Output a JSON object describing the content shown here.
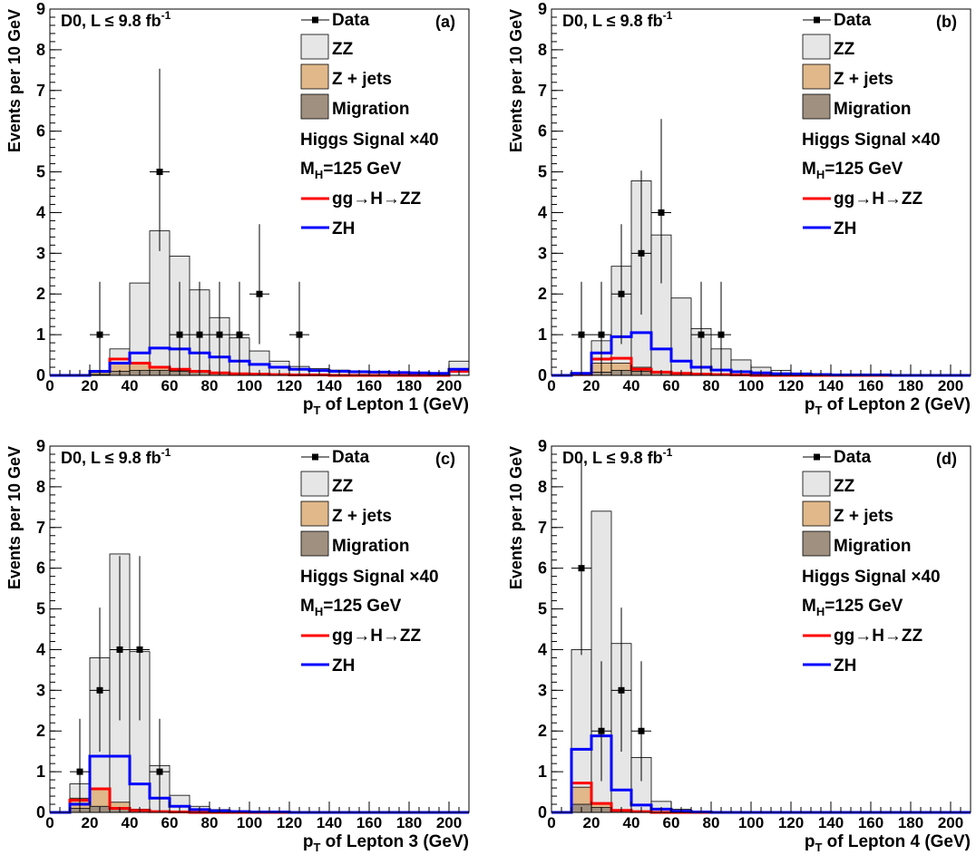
{
  "chart_data": [
    {
      "panel": "(a)",
      "type": "bar",
      "experiment": "D0, L ≤ 9.8 fb",
      "lumi_sup": "-1",
      "xlabel_sym": "p",
      "xlabel_sub": "T",
      "xlabel_rest": " of Lepton 1 (GeV)",
      "ylabel": "Events per 10 GeV",
      "xlim": [
        0,
        210
      ],
      "ylim": [
        0,
        9
      ],
      "xticks": [
        "0",
        "20",
        "40",
        "60",
        "80",
        "100",
        "120",
        "140",
        "160",
        "180",
        "200"
      ],
      "yticks": [
        "0",
        "1",
        "2",
        "3",
        "4",
        "5",
        "6",
        "7",
        "8",
        "9"
      ],
      "bin_edges": [
        0,
        10,
        20,
        30,
        40,
        50,
        60,
        70,
        80,
        90,
        100,
        110,
        120,
        130,
        140,
        150,
        160,
        170,
        180,
        190,
        200,
        210
      ],
      "series": [
        {
          "name": "ZZ",
          "kind": "stack-total",
          "color": "#e6e6e6",
          "values": [
            0,
            0,
            0.12,
            0.65,
            2.27,
            3.55,
            2.93,
            2.1,
            1.42,
            0.92,
            0.6,
            0.35,
            0.22,
            0.17,
            0.13,
            0.1,
            0.08,
            0.06,
            0.05,
            0.04,
            0.35
          ]
        },
        {
          "name": "Z + jets",
          "kind": "stack-mid",
          "color": "#e0b88a",
          "values": [
            0,
            0,
            0.07,
            0.28,
            0.3,
            0.2,
            0.12,
            0.08,
            0.05,
            0.03,
            0.02,
            0.01,
            0.01,
            0,
            0,
            0,
            0,
            0,
            0,
            0,
            0
          ]
        },
        {
          "name": "Migration",
          "kind": "stack-bottom",
          "color": "#a09080",
          "values": [
            0,
            0,
            0.02,
            0.1,
            0.12,
            0.12,
            0.1,
            0.08,
            0.06,
            0.05,
            0.04,
            0.03,
            0.02,
            0.01,
            0.01,
            0,
            0,
            0,
            0,
            0,
            0
          ]
        },
        {
          "name": "gg→H→ZZ",
          "kind": "line",
          "color": "#ff0000",
          "values": [
            0,
            0,
            0.1,
            0.4,
            0.3,
            0.2,
            0.15,
            0.1,
            0.06,
            0.04,
            0.03,
            0.02,
            0.01,
            0.01,
            0,
            0,
            0,
            0,
            0,
            0,
            0.1
          ]
        },
        {
          "name": "ZH",
          "kind": "line",
          "color": "#0000ff",
          "values": [
            0,
            0,
            0.1,
            0.3,
            0.55,
            0.67,
            0.65,
            0.55,
            0.45,
            0.35,
            0.27,
            0.2,
            0.15,
            0.12,
            0.1,
            0.09,
            0.08,
            0.07,
            0.06,
            0.05,
            0.15
          ]
        },
        {
          "name": "Data",
          "kind": "points",
          "points": [
            {
              "x": 25,
              "y": 1
            },
            {
              "x": 55,
              "y": 5
            },
            {
              "x": 65,
              "y": 1
            },
            {
              "x": 75,
              "y": 1
            },
            {
              "x": 85,
              "y": 1
            },
            {
              "x": 95,
              "y": 1
            },
            {
              "x": 105,
              "y": 2
            },
            {
              "x": 125,
              "y": 1
            }
          ]
        }
      ]
    },
    {
      "panel": "(b)",
      "type": "bar",
      "experiment": "D0, L ≤ 9.8 fb",
      "lumi_sup": "-1",
      "xlabel_sym": "p",
      "xlabel_sub": "T",
      "xlabel_rest": " of Lepton 2 (GeV)",
      "ylabel": "Events per 10 GeV",
      "xlim": [
        0,
        210
      ],
      "ylim": [
        0,
        9
      ],
      "xticks": [
        "0",
        "20",
        "40",
        "60",
        "80",
        "100",
        "120",
        "140",
        "160",
        "180",
        "200"
      ],
      "yticks": [
        "0",
        "1",
        "2",
        "3",
        "4",
        "5",
        "6",
        "7",
        "8",
        "9"
      ],
      "bin_edges": [
        0,
        10,
        20,
        30,
        40,
        50,
        60,
        70,
        80,
        90,
        100,
        110,
        120,
        130,
        140,
        150,
        160,
        170,
        180,
        190,
        200,
        210
      ],
      "series": [
        {
          "name": "ZZ",
          "kind": "stack-total",
          "color": "#e6e6e6",
          "values": [
            0,
            0.07,
            0.85,
            2.68,
            4.78,
            3.45,
            1.9,
            1.15,
            0.65,
            0.38,
            0.2,
            0.12,
            0.06,
            0.04,
            0.03,
            0.02,
            0.01,
            0.01,
            0,
            0,
            0
          ]
        },
        {
          "name": "Z + jets",
          "kind": "stack-mid",
          "color": "#e0b88a",
          "values": [
            0,
            0.01,
            0.3,
            0.3,
            0.2,
            0.1,
            0.05,
            0.03,
            0.02,
            0.01,
            0,
            0,
            0,
            0,
            0,
            0,
            0,
            0,
            0,
            0,
            0
          ]
        },
        {
          "name": "Migration",
          "kind": "stack-bottom",
          "color": "#a09080",
          "values": [
            0,
            0.01,
            0.08,
            0.12,
            0.1,
            0.08,
            0.06,
            0.04,
            0.03,
            0.02,
            0.01,
            0.01,
            0,
            0,
            0,
            0,
            0,
            0,
            0,
            0,
            0
          ]
        },
        {
          "name": "gg→H→ZZ",
          "kind": "line",
          "color": "#ff0000",
          "values": [
            0,
            0.02,
            0.4,
            0.42,
            0.15,
            0.08,
            0.05,
            0.03,
            0.02,
            0.01,
            0,
            0,
            0,
            0,
            0,
            0,
            0,
            0,
            0,
            0,
            0
          ]
        },
        {
          "name": "ZH",
          "kind": "line",
          "color": "#0000ff",
          "values": [
            0,
            0.05,
            0.55,
            0.95,
            1.05,
            0.65,
            0.35,
            0.2,
            0.13,
            0.09,
            0.06,
            0.04,
            0.03,
            0.02,
            0.01,
            0.01,
            0.01,
            0,
            0,
            0,
            0
          ]
        },
        {
          "name": "Data",
          "kind": "points",
          "points": [
            {
              "x": 15,
              "y": 1
            },
            {
              "x": 25,
              "y": 1
            },
            {
              "x": 35,
              "y": 2
            },
            {
              "x": 45,
              "y": 3
            },
            {
              "x": 55,
              "y": 4
            },
            {
              "x": 75,
              "y": 1
            },
            {
              "x": 85,
              "y": 1
            }
          ]
        }
      ]
    },
    {
      "panel": "(c)",
      "type": "bar",
      "experiment": "D0, L ≤ 9.8 fb",
      "lumi_sup": "-1",
      "xlabel_sym": "p",
      "xlabel_sub": "T",
      "xlabel_rest": " of Lepton 3 (GeV)",
      "ylabel": "Events per 10 GeV",
      "xlim": [
        0,
        210
      ],
      "ylim": [
        0,
        9
      ],
      "xticks": [
        "0",
        "20",
        "40",
        "60",
        "80",
        "100",
        "120",
        "140",
        "160",
        "180",
        "200"
      ],
      "yticks": [
        "0",
        "1",
        "2",
        "3",
        "4",
        "5",
        "6",
        "7",
        "8",
        "9"
      ],
      "bin_edges": [
        0,
        10,
        20,
        30,
        40,
        50,
        60,
        70,
        80,
        90,
        100,
        110,
        120,
        130,
        140,
        150,
        160,
        170,
        180,
        190,
        200,
        210
      ],
      "series": [
        {
          "name": "ZZ",
          "kind": "stack-total",
          "color": "#e6e6e6",
          "values": [
            0,
            0.7,
            3.8,
            6.35,
            3.95,
            1.15,
            0.42,
            0.15,
            0.07,
            0.04,
            0.02,
            0.01,
            0.01,
            0,
            0,
            0,
            0,
            0,
            0,
            0,
            0
          ]
        },
        {
          "name": "Z + jets",
          "kind": "stack-mid",
          "color": "#e0b88a",
          "values": [
            0,
            0.35,
            0.6,
            0.25,
            0.08,
            0.03,
            0.01,
            0,
            0,
            0,
            0,
            0,
            0,
            0,
            0,
            0,
            0,
            0,
            0,
            0,
            0
          ]
        },
        {
          "name": "Migration",
          "kind": "stack-bottom",
          "color": "#a09080",
          "values": [
            0,
            0.1,
            0.15,
            0.12,
            0.06,
            0.03,
            0.01,
            0,
            0,
            0,
            0,
            0,
            0,
            0,
            0,
            0,
            0,
            0,
            0,
            0,
            0
          ]
        },
        {
          "name": "gg→H→ZZ",
          "kind": "line",
          "color": "#ff0000",
          "values": [
            0,
            0.3,
            0.58,
            0.1,
            0.05,
            0.02,
            0.01,
            0,
            0,
            0,
            0,
            0,
            0,
            0,
            0,
            0,
            0,
            0,
            0,
            0,
            0
          ]
        },
        {
          "name": "ZH",
          "kind": "line",
          "color": "#0000ff",
          "values": [
            0,
            0.2,
            1.38,
            1.38,
            0.7,
            0.35,
            0.15,
            0.07,
            0.04,
            0.02,
            0.01,
            0.01,
            0,
            0,
            0,
            0,
            0,
            0,
            0,
            0,
            0
          ]
        },
        {
          "name": "Data",
          "kind": "points",
          "points": [
            {
              "x": 15,
              "y": 1
            },
            {
              "x": 25,
              "y": 3
            },
            {
              "x": 35,
              "y": 4
            },
            {
              "x": 45,
              "y": 4
            },
            {
              "x": 55,
              "y": 1
            }
          ]
        }
      ]
    },
    {
      "panel": "(d)",
      "type": "bar",
      "experiment": "D0, L ≤ 9.8 fb",
      "lumi_sup": "-1",
      "xlabel_sym": "p",
      "xlabel_sub": "T",
      "xlabel_rest": " of Lepton 4 (GeV)",
      "ylabel": "Events per 10 GeV",
      "xlim": [
        0,
        210
      ],
      "ylim": [
        0,
        9
      ],
      "xticks": [
        "0",
        "20",
        "40",
        "60",
        "80",
        "100",
        "120",
        "140",
        "160",
        "180",
        "200"
      ],
      "yticks": [
        "0",
        "1",
        "2",
        "3",
        "4",
        "5",
        "6",
        "7",
        "8",
        "9"
      ],
      "bin_edges": [
        0,
        10,
        20,
        30,
        40,
        50,
        60,
        70,
        80,
        90,
        100,
        110,
        120,
        130,
        140,
        150,
        160,
        170,
        180,
        190,
        200,
        210
      ],
      "series": [
        {
          "name": "ZZ",
          "kind": "stack-total",
          "color": "#e6e6e6",
          "values": [
            0,
            4.0,
            7.4,
            4.15,
            1.35,
            0.27,
            0.08,
            0.03,
            0.01,
            0,
            0,
            0,
            0,
            0,
            0,
            0,
            0,
            0,
            0,
            0,
            0
          ]
        },
        {
          "name": "Z + jets",
          "kind": "stack-mid",
          "color": "#e0b88a",
          "values": [
            0,
            0.62,
            0.2,
            0.05,
            0.02,
            0,
            0,
            0,
            0,
            0,
            0,
            0,
            0,
            0,
            0,
            0,
            0,
            0,
            0,
            0,
            0
          ]
        },
        {
          "name": "Migration",
          "kind": "stack-bottom",
          "color": "#a09080",
          "values": [
            0,
            0.2,
            0.12,
            0.05,
            0.02,
            0.01,
            0,
            0,
            0,
            0,
            0,
            0,
            0,
            0,
            0,
            0,
            0,
            0,
            0,
            0,
            0
          ]
        },
        {
          "name": "gg→H→ZZ",
          "kind": "line",
          "color": "#ff0000",
          "values": [
            0,
            0.72,
            0.22,
            0.05,
            0.02,
            0,
            0,
            0,
            0,
            0,
            0,
            0,
            0,
            0,
            0,
            0,
            0,
            0,
            0,
            0,
            0
          ]
        },
        {
          "name": "ZH",
          "kind": "line",
          "color": "#0000ff",
          "values": [
            0,
            1.55,
            1.88,
            0.55,
            0.18,
            0.08,
            0.03,
            0.01,
            0,
            0,
            0,
            0,
            0,
            0,
            0,
            0,
            0,
            0,
            0,
            0,
            0
          ]
        },
        {
          "name": "Data",
          "kind": "points",
          "points": [
            {
              "x": 15,
              "y": 6
            },
            {
              "x": 25,
              "y": 2
            },
            {
              "x": 35,
              "y": 3
            },
            {
              "x": 45,
              "y": 2
            }
          ]
        }
      ]
    }
  ],
  "legend": {
    "data_label": "Data",
    "zz_label": "ZZ",
    "zjets_label": "Z + jets",
    "migration_label": "Migration",
    "higgs_title": "Higgs Signal ×40",
    "mass_prefix": "M",
    "mass_sub": "H",
    "mass_rest": "=125 GeV",
    "gg_label": "gg→H→ZZ",
    "zh_label": "ZH"
  }
}
